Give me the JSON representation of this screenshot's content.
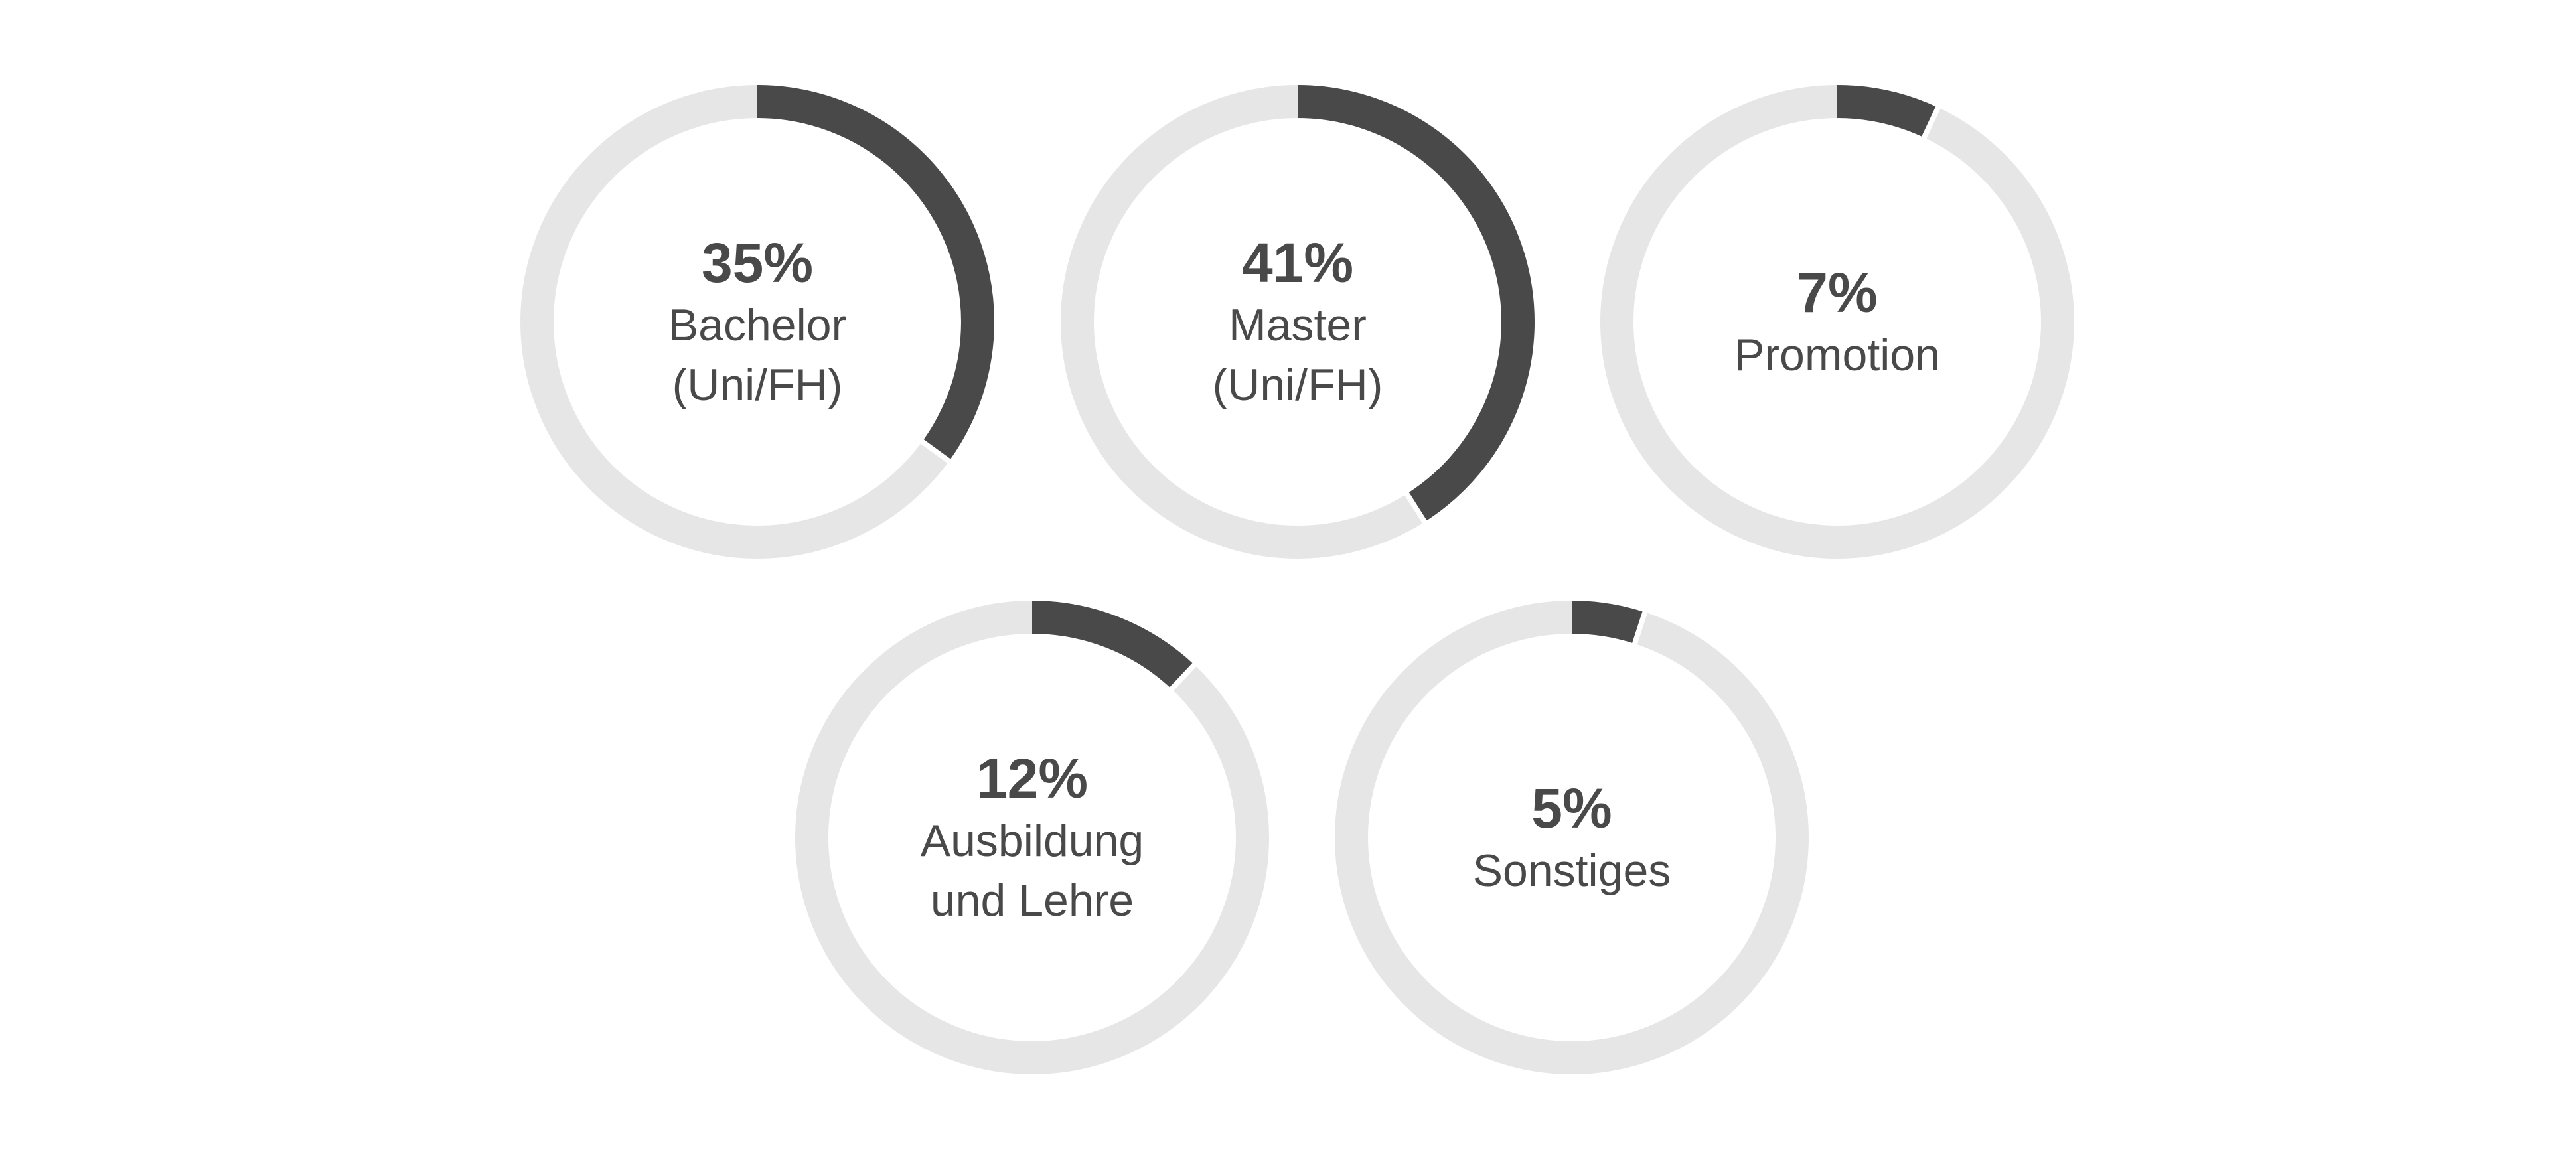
{
  "colors": {
    "track": "#e6e6e6",
    "value": "#4a494a",
    "text": "#4a494a",
    "separator": "#ffffff"
  },
  "chart_data": {
    "type": "donut",
    "charts": [
      {
        "percent_label": "35%",
        "value": 35,
        "label_lines": [
          "Bachelor",
          "(Uni/FH)"
        ]
      },
      {
        "percent_label": "41%",
        "value": 41,
        "label_lines": [
          "Master",
          "(Uni/FH)"
        ]
      },
      {
        "percent_label": "7%",
        "value": 7,
        "label_lines": [
          "Promotion"
        ]
      },
      {
        "percent_label": "12%",
        "value": 12,
        "label_lines": [
          "Ausbildung",
          "und Lehre"
        ]
      },
      {
        "percent_label": "5%",
        "value": 5,
        "label_lines": [
          "Sonstiges"
        ]
      }
    ]
  }
}
